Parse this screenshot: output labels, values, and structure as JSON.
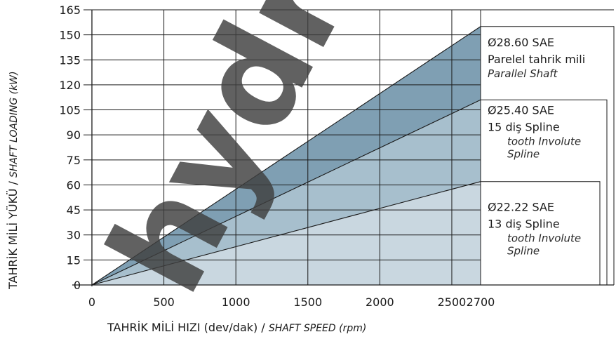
{
  "chart_data": {
    "type": "area",
    "x_ticks": [
      0,
      500,
      1000,
      1500,
      2000,
      2500,
      2700
    ],
    "y_ticks": [
      0,
      15,
      30,
      45,
      60,
      75,
      90,
      105,
      120,
      135,
      150,
      165
    ],
    "xlim": [
      0,
      2700
    ],
    "ylim": [
      0,
      165
    ],
    "grid": true,
    "xlabel": {
      "main": "TAHRİK MİLİ HIZI (dev/dak) / ",
      "italic": "SHAFT SPEED (rpm)"
    },
    "ylabel": {
      "main": "TAHRİK MİLİ YÜKÜ / ",
      "italic": "SHAFT LOADING (kW)"
    },
    "series": [
      {
        "x": [
          0,
          2700
        ],
        "y": [
          0,
          155
        ],
        "color": "#7f9fb3",
        "label_lines": [
          "Ø28.60 SAE",
          "Parelel tahrik mili"
        ],
        "label_italic": [
          "Parallel Shaft"
        ]
      },
      {
        "x": [
          0,
          2700
        ],
        "y": [
          0,
          111
        ],
        "color": "#a7bfcd",
        "label_lines": [
          "Ø25.40  SAE",
          "15 diş Spline"
        ],
        "label_italic": [
          "tooth Involute",
          "Spline"
        ]
      },
      {
        "x": [
          0,
          2700
        ],
        "y": [
          0,
          62
        ],
        "color": "#c9d7e0",
        "label_lines": [
          "Ø22.22  SAE",
          "13 diş Spline"
        ],
        "label_italic": [
          "tooth Involute",
          "Spline"
        ]
      }
    ],
    "watermark": "hydro"
  }
}
